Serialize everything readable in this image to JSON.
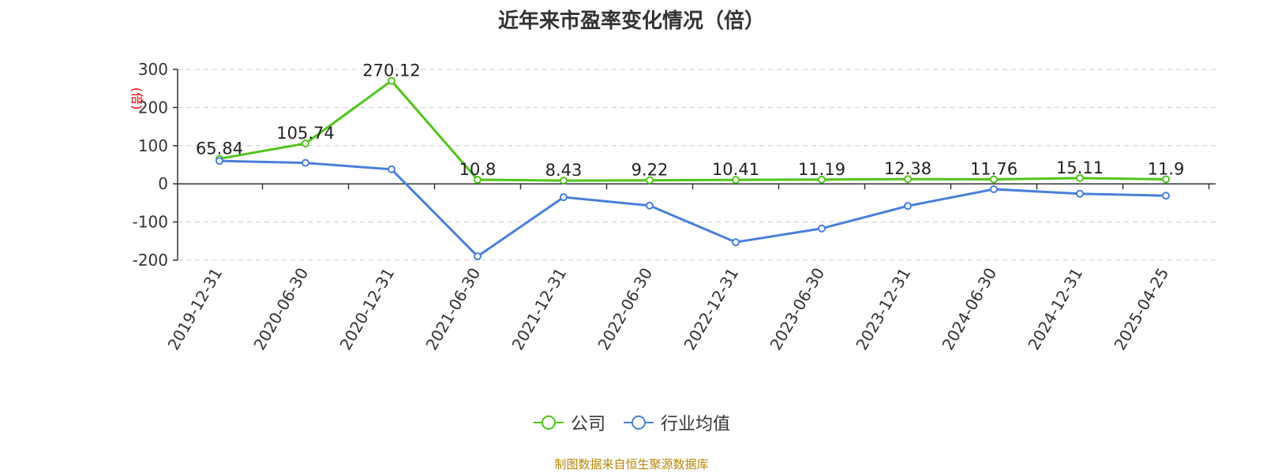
{
  "title": "近年来市盈率变化情况（倍）",
  "source": "制图数据来自恒生聚源数据库",
  "colors": {
    "company": "#52c41a",
    "industry": "#4a7fdb",
    "axis": "#333333",
    "grid": "#cccccc",
    "unit": "#e60000",
    "source": "#b8860b"
  },
  "chart_data": {
    "type": "line",
    "title": "近年来市盈率变化情况（倍）",
    "ylabel": "(倍)",
    "xlabel": "",
    "ylim": [
      -200,
      300
    ],
    "yticks": [
      300,
      200,
      100,
      0,
      -100,
      -200
    ],
    "grid": true,
    "legend_position": "bottom",
    "x": [
      "2019-12-31",
      "2020-06-30",
      "2020-12-31",
      "2021-06-30",
      "2021-12-31",
      "2022-06-30",
      "2022-12-31",
      "2023-06-30",
      "2023-12-31",
      "2024-06-30",
      "2024-12-31",
      "2025-04-25"
    ],
    "series": [
      {
        "name": "公司",
        "color": "#52c41a",
        "values": [
          65.84,
          105.74,
          270.12,
          10.8,
          8.43,
          9.22,
          10.41,
          11.19,
          12.38,
          11.76,
          15.11,
          11.9
        ],
        "labels": [
          "65.84",
          "105.74",
          "270.12",
          "10.8",
          "8.43",
          "9.22",
          "10.41",
          "11.19",
          "12.38",
          "11.76",
          "15.11",
          "11.9"
        ]
      },
      {
        "name": "行业均值",
        "color": "#4a7fdb",
        "values": [
          60,
          55,
          38,
          -190,
          -35,
          -57,
          -153,
          -117,
          -58,
          -14,
          -26,
          -31
        ]
      }
    ]
  }
}
